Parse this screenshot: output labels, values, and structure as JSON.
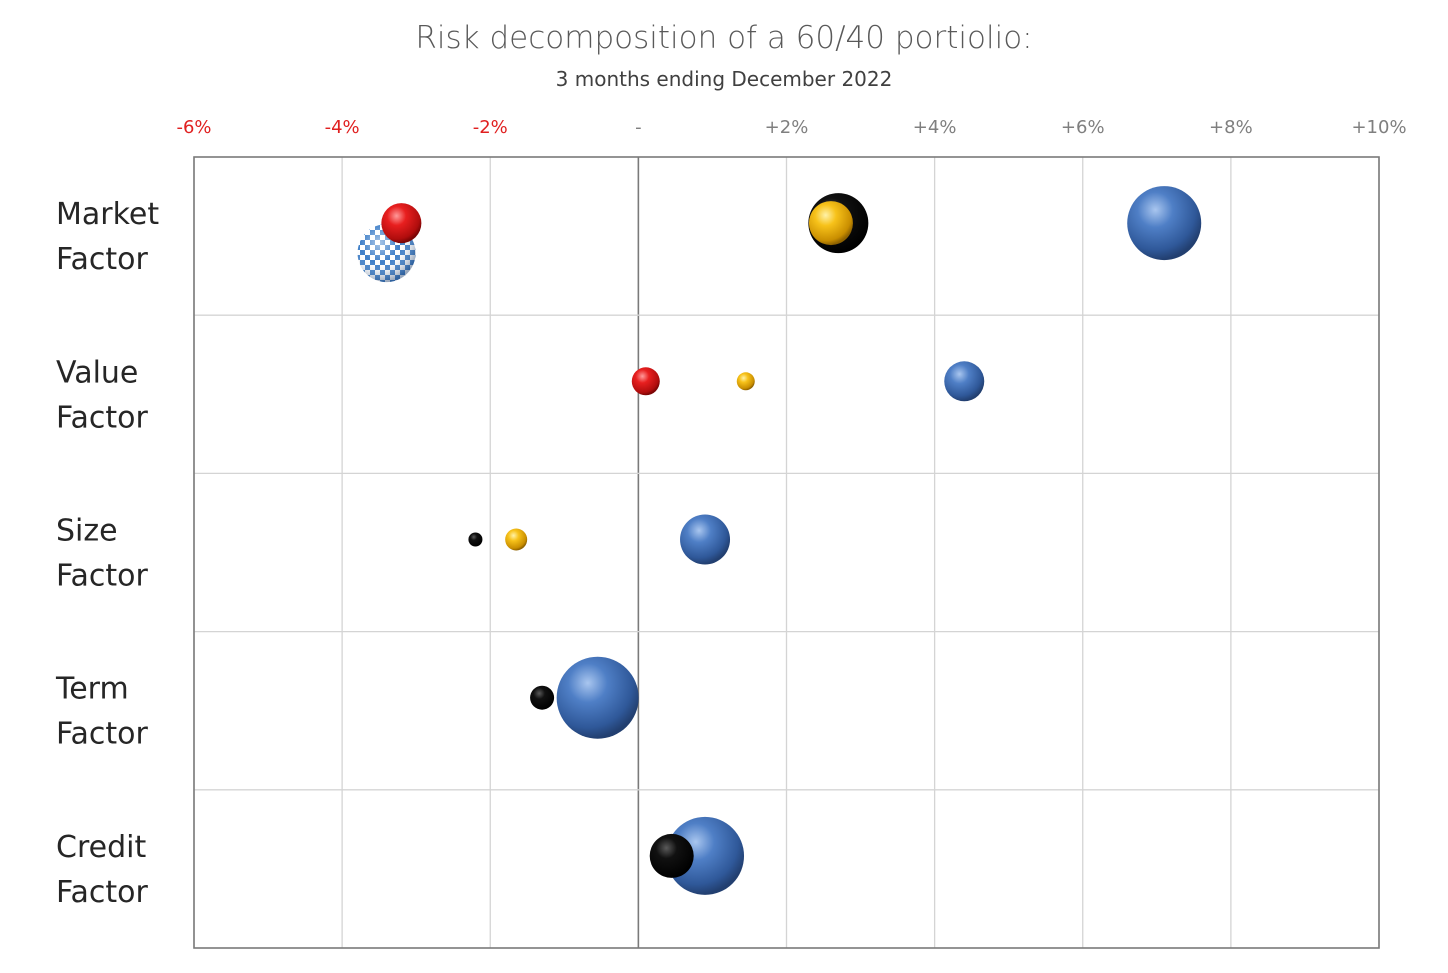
{
  "chart_data": {
    "type": "scatter",
    "title": "Risk decomposition of a 60/40 portiolio:",
    "subtitle": "3 months ending December 2022",
    "x_ticks": [
      {
        "value": -6,
        "label": "-6%"
      },
      {
        "value": -4,
        "label": "-4%"
      },
      {
        "value": -2,
        "label": "-2%"
      },
      {
        "value": 0,
        "label": "-"
      },
      {
        "value": 2,
        "label": "+2%"
      },
      {
        "value": 4,
        "label": "+4%"
      },
      {
        "value": 6,
        "label": "+6%"
      },
      {
        "value": 8,
        "label": "+8%"
      },
      {
        "value": 10,
        "label": "+10%"
      }
    ],
    "xlim": [
      -6,
      10
    ],
    "negative_tick_color": "#e02020",
    "positive_tick_color": "#7f7f7f",
    "grid": true,
    "rows": [
      {
        "label_line1": "Market",
        "label_line2": "Factor"
      },
      {
        "label_line1": "Value",
        "label_line2": "Factor"
      },
      {
        "label_line1": "Size",
        "label_line2": "Factor"
      },
      {
        "label_line1": "Term",
        "label_line2": "Factor"
      },
      {
        "label_line1": "Credit",
        "label_line2": "Factor"
      }
    ],
    "bubbles": [
      {
        "row": 0,
        "x": 7.1,
        "size": 3.7,
        "color": "blue"
      },
      {
        "row": 0,
        "x": 2.7,
        "size": 3.0,
        "color": "black"
      },
      {
        "row": 0,
        "x": 2.6,
        "size": 2.2,
        "color": "yellow"
      },
      {
        "row": 0,
        "x": -3.4,
        "size": 2.9,
        "color": "checker",
        "offset": 0.2
      },
      {
        "row": 0,
        "x": -3.2,
        "size": 2.0,
        "color": "red"
      },
      {
        "row": 1,
        "x": 4.4,
        "size": 2.0,
        "color": "blue"
      },
      {
        "row": 1,
        "x": 0.1,
        "size": 1.4,
        "color": "red"
      },
      {
        "row": 1,
        "x": 1.45,
        "size": 0.9,
        "color": "yellow"
      },
      {
        "row": 2,
        "x": 0.9,
        "size": 2.5,
        "color": "blue"
      },
      {
        "row": 2,
        "x": -2.2,
        "size": 0.7,
        "color": "black"
      },
      {
        "row": 2,
        "x": -1.65,
        "size": 1.1,
        "color": "yellow"
      },
      {
        "row": 3,
        "x": -0.55,
        "size": 4.1,
        "color": "blue"
      },
      {
        "row": 3,
        "x": -1.3,
        "size": 1.2,
        "color": "black"
      },
      {
        "row": 4,
        "x": 0.9,
        "size": 3.9,
        "color": "blue"
      },
      {
        "row": 4,
        "x": 0.45,
        "size": 2.2,
        "color": "black"
      }
    ],
    "palette": {
      "blue": "#3c68b0",
      "black": "#0a0a0a",
      "yellow": "#f2b600",
      "red": "#e01b1b",
      "checker": "#3f7fc8"
    }
  }
}
